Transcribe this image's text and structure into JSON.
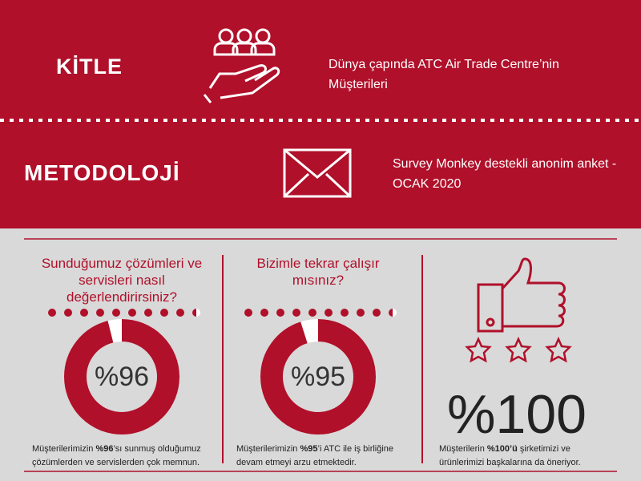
{
  "header": {
    "sections": [
      {
        "title": "KİTLE",
        "text": "Dünya çapında ATC Air Trade Centre’nin Müşterileri"
      },
      {
        "title": "METODOLOJİ",
        "text": "Survey Monkey destekli anonim anket - OCAK 2020"
      }
    ]
  },
  "panels": [
    {
      "question": "Sunduğumuz çözümleri ve servisleri nasıl değerlendirirsiniz?",
      "value": 96,
      "label": "%96",
      "caption": [
        "Müşterilerimizin ",
        "%96",
        "’sı sunmuş olduğumuz çözümlerden ve servislerden çok memnun."
      ]
    },
    {
      "question": "Bizimle tekrar çalışır mısınız?",
      "value": 95,
      "label": "%95",
      "caption": [
        "Müşterilerimizin ",
        "%95",
        "’i ATC ile iş birliğine devam etmeyi arzu etmektedir."
      ]
    },
    {
      "label": "%100",
      "caption": [
        "Müşterilerin ",
        "%100’ü",
        " şirketimizi ve ürünlerimizi başkalarına da öneriyor."
      ]
    }
  ]
}
